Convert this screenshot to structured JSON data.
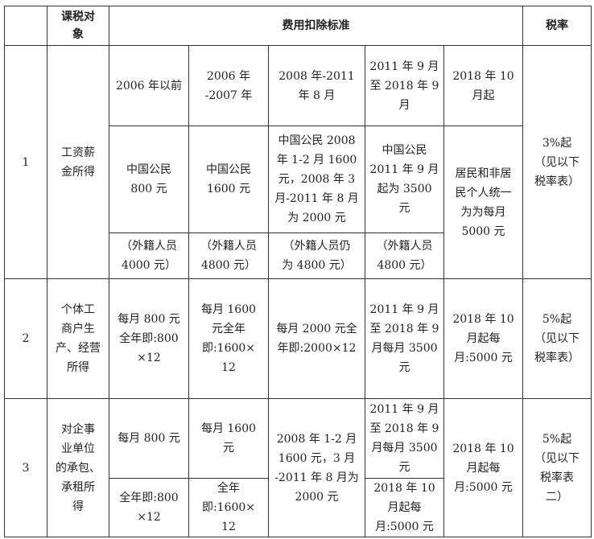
{
  "header": {
    "index": "",
    "subject": "课税对\n象",
    "deduction": "费用扣除标准",
    "rate": "税率"
  },
  "rows": [
    {
      "index": "1",
      "subject": "工资薪\n金所得",
      "periods": [
        "2006 年以前",
        "2006 年\n-2007 年",
        "2008 年-2011\n年 8 月",
        "2011 年 9 月\n至 2018 年 9\n月",
        "2018 年 10\n月起"
      ],
      "citizens": [
        "中国公民\n800 元",
        "中国公民\n1600 元",
        "中国公民 2008\n年 1-2 月 1600\n元，2008 年 3\n月-2011 年 8 月\n为 2000 元",
        "中国公民\n2011 年 9 月\n起为 3500\n元",
        "居民和非居\n民个人统一\n为为每月\n5000 元"
      ],
      "foreigners": [
        "（外籍人员\n4000 元）",
        "（外籍人员\n4800 元）",
        "（外籍人员仍\n为 4800 元）",
        "（外籍人员\n4800 元）"
      ],
      "rate": "3%起\n（见以下\n税率表）"
    },
    {
      "index": "2",
      "subject": "个体工\n商户生\n产、经营\n所得",
      "cells": [
        "每月 800 元\n全年即:800\n×12",
        "每月 1600\n元全年\n即:1600×\n12",
        "每月 2000 元全\n年即:2000×12",
        "2011 年 9 月\n至 2018 年 9\n月每月 3500\n元",
        "2018 年 10\n月起每\n月:5000 元"
      ],
      "rate": "5%起\n（见以下\n税率表）"
    },
    {
      "index": "3",
      "subject": "对企事\n业单位\n的承包、\n承租所\n得",
      "cells_top": [
        "每月 800 元",
        "每月 1600\n元",
        "2008 年 1-2 月\n1600 元，3 月\n-2011 年 8 月为\n2000 元",
        "2011 年 9 月\n至 2018 年 9\n月每月 3500\n元",
        "2018 年 10\n月起每\n月:5000 元"
      ],
      "cells_bottom": [
        "全年即:800\n×12",
        "全年\n即:1600×\n12",
        "2018 年 10\n月起每\n月:5000 元"
      ],
      "rate": "5%起\n（见以下\n税率表\n二）"
    }
  ]
}
